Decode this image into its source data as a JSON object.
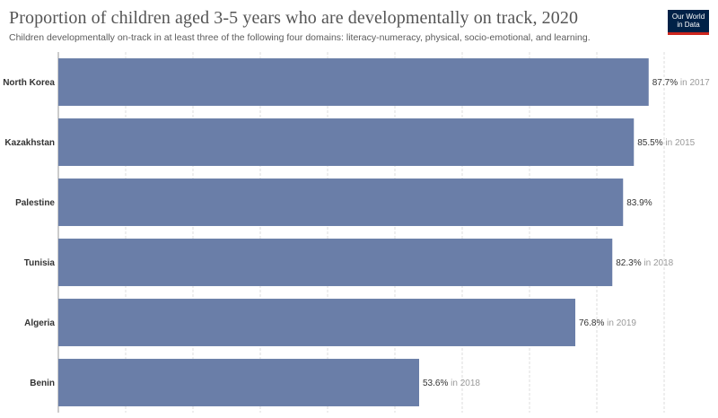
{
  "header": {
    "title": "Proportion of children aged 3-5 years who are developmentally on track, 2020",
    "subtitle": "Children developmentally on-track in at least three of the following four domains: literacy-numeracy, physical, socio-emotional, and learning.",
    "logo_line1": "Our World",
    "logo_line2": "in Data"
  },
  "colors": {
    "bar": "#6a7ea8",
    "grid": "#dddddd",
    "logo_bg": "#002147",
    "logo_accent": "#ce261e"
  },
  "chart_data": {
    "type": "bar",
    "orientation": "horizontal",
    "title": "Proportion of children aged 3-5 years who are developmentally on track, 2020",
    "subtitle": "Children developmentally on-track in at least three of the following four domains: literacy-numeracy, physical, socio-emotional, and learning.",
    "categories": [
      "North Korea",
      "Kazakhstan",
      "Palestine",
      "Tunisia",
      "Algeria",
      "Benin"
    ],
    "values": [
      87.7,
      85.5,
      83.9,
      82.3,
      76.8,
      53.6
    ],
    "value_labels": [
      "87.7%",
      "85.5%",
      "83.9%",
      "82.3%",
      "76.8%",
      "53.6%"
    ],
    "year_notes": [
      "in 2017",
      "in 2015",
      "",
      "in 2018",
      "in 2019",
      "in 2018"
    ],
    "xlim": [
      0,
      90
    ],
    "grid": "vertical",
    "legend": "none"
  }
}
